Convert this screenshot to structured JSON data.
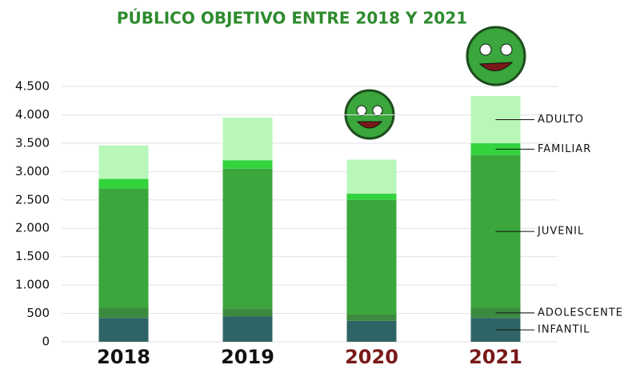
{
  "chart_data": {
    "type": "stacked_bar",
    "title": "PÚBLICO OBJETIVO ENTRE 2018 Y 2021",
    "categories": [
      "2018",
      "2019",
      "2020",
      "2021"
    ],
    "category_colors": [
      "#111111",
      "#111111",
      "#7a1a1a",
      "#7a1a1a"
    ],
    "series": [
      {
        "name": "INFANTIL",
        "color": "#2f6466",
        "values": [
          420,
          450,
          370,
          420
        ]
      },
      {
        "name": "ADOLESCENTE",
        "color": "#3b8a3f",
        "values": [
          180,
          140,
          110,
          180
        ]
      },
      {
        "name": "JUVENIL",
        "color": "#3aa63c",
        "values": [
          2100,
          2460,
          2020,
          2690
        ]
      },
      {
        "name": "FAMILIAR",
        "color": "#33d33e",
        "values": [
          170,
          150,
          110,
          210
        ]
      },
      {
        "name": "ADULTO",
        "color": "#b8f7b8",
        "values": [
          590,
          750,
          600,
          830
        ]
      }
    ],
    "ylim": [
      0,
      4500
    ],
    "yticks": [
      0,
      {
        "value": 500,
        "label": "500"
      },
      {
        "value": 1000,
        "label": "1.000"
      },
      {
        "value": 1500,
        "label": "1.500"
      },
      {
        "value": 2000,
        "label": "2.000"
      },
      {
        "value": 2500,
        "label": "2.500"
      },
      {
        "value": 3000,
        "label": "3.000"
      },
      {
        "value": 3500,
        "label": "3.500"
      },
      {
        "value": 4000,
        "label": "4.000"
      },
      {
        "value": 4500,
        "label": "4.500"
      }
    ],
    "grid": true,
    "legend": "right"
  }
}
